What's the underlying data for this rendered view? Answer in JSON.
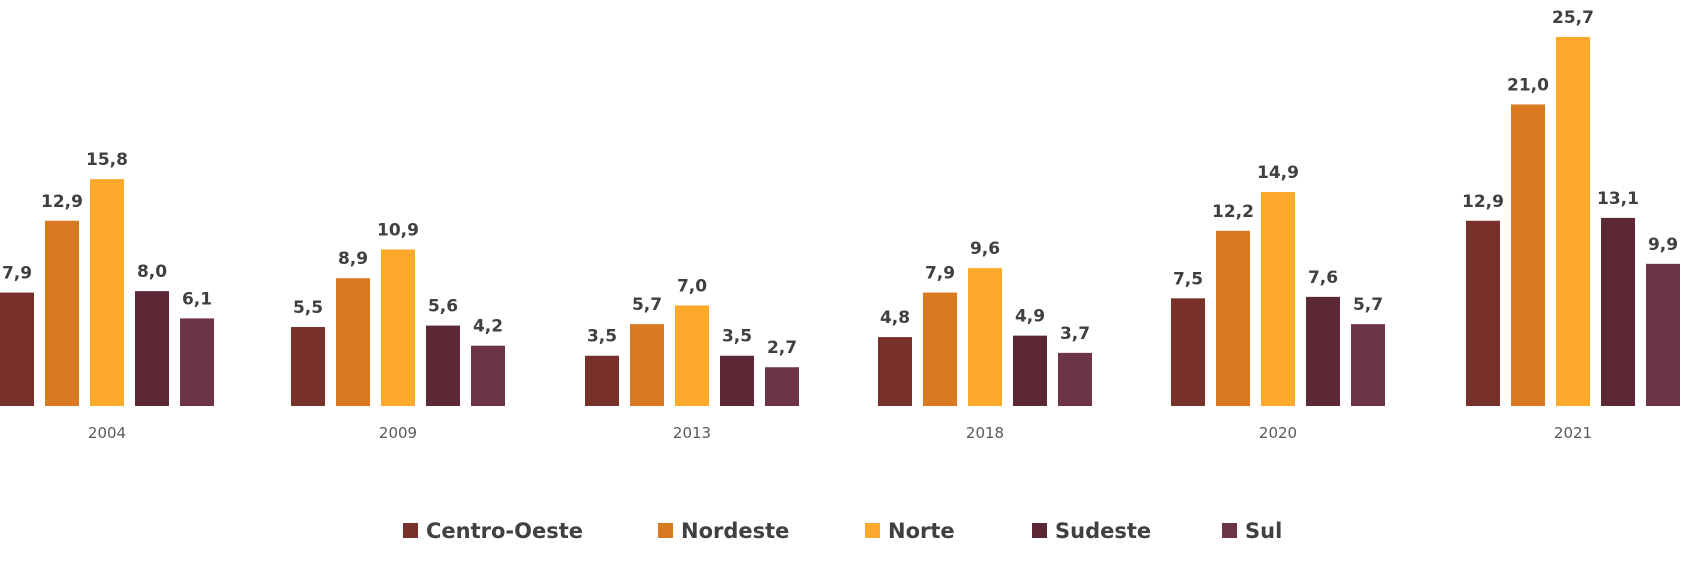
{
  "chart_data": {
    "type": "bar",
    "categories": [
      "2004",
      "2009",
      "2013",
      "2018",
      "2020",
      "2021"
    ],
    "series": [
      {
        "name": "Centro-Oeste",
        "color": "#77302A",
        "values": [
          7.9,
          5.5,
          3.5,
          4.8,
          7.5,
          12.9
        ],
        "labels": [
          "7,9",
          "5,5",
          "3,5",
          "4,8",
          "7,5",
          "12,9"
        ]
      },
      {
        "name": "Nordeste",
        "color": "#D97A20",
        "values": [
          12.9,
          8.9,
          5.7,
          7.9,
          12.2,
          21.0
        ],
        "labels": [
          "12,9",
          "8,9",
          "5,7",
          "7,9",
          "12,2",
          "21,0"
        ]
      },
      {
        "name": "Norte",
        "color": "#FBA82B",
        "values": [
          15.8,
          10.9,
          7.0,
          9.6,
          14.9,
          25.7
        ],
        "labels": [
          "15,8",
          "10,9",
          "7,0",
          "9,6",
          "14,9",
          "25,7"
        ]
      },
      {
        "name": "Sudeste",
        "color": "#5C2836",
        "values": [
          8.0,
          5.6,
          3.5,
          4.9,
          7.6,
          13.1
        ],
        "labels": [
          "8,0",
          "5,6",
          "3,5",
          "4,9",
          "7,6",
          "13,1"
        ]
      },
      {
        "name": "Sul",
        "color": "#6D3445",
        "values": [
          6.1,
          4.2,
          2.7,
          3.7,
          5.7,
          9.9
        ],
        "labels": [
          "6,1",
          "4,2",
          "2,7",
          "3,7",
          "5,7",
          "9,9"
        ]
      }
    ],
    "ylim": [
      0,
      25.7
    ],
    "grid": false,
    "legend": "bottom",
    "title": "",
    "xlabel": "",
    "ylabel": ""
  }
}
